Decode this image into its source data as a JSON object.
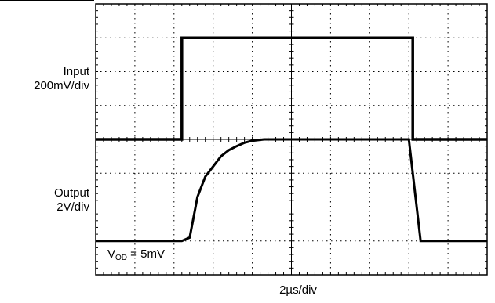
{
  "chart_data": {
    "type": "line",
    "xlabel": "2µs/div",
    "x_divisions": 10,
    "grid": true,
    "channels": [
      {
        "label_lines": [
          "Input",
          "200mV/div"
        ],
        "y_divisions": 4,
        "x": [
          0,
          2.2,
          2.2,
          8.1,
          8.1,
          10
        ],
        "y": [
          0,
          0,
          3.0,
          3.0,
          0,
          0
        ]
      },
      {
        "label_lines": [
          "Output",
          "2V/div"
        ],
        "y_divisions": 4,
        "x": [
          0,
          2.2,
          2.4,
          2.6,
          2.8,
          3.0,
          3.2,
          3.4,
          3.6,
          3.8,
          4.0,
          4.3,
          5.0,
          8.0,
          8.15,
          8.3,
          10
        ],
        "y": [
          0,
          0,
          0.1,
          1.3,
          1.9,
          2.2,
          2.5,
          2.68,
          2.8,
          2.9,
          2.96,
          3.0,
          3.0,
          3.0,
          1.5,
          0,
          0
        ]
      }
    ],
    "annotation": {
      "main": "V",
      "sub": "OD",
      "rest": " = 5mV"
    }
  }
}
